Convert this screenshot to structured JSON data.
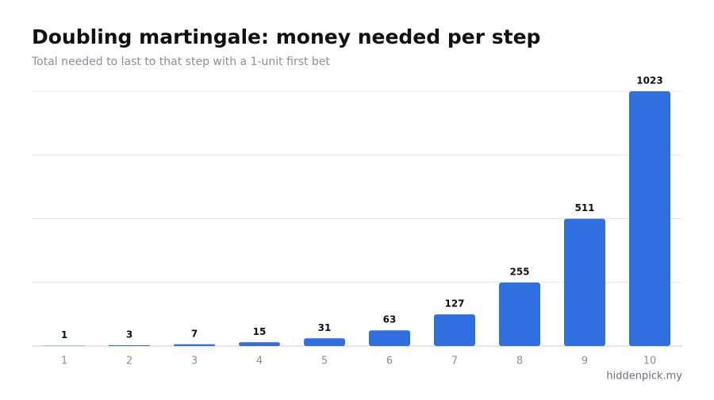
{
  "chart_data": {
    "type": "bar",
    "title": "Doubling martingale: money needed per step",
    "subtitle": "Total needed to last to that step with a 1-unit first bet",
    "categories": [
      "1",
      "2",
      "3",
      "4",
      "5",
      "6",
      "7",
      "8",
      "9",
      "10"
    ],
    "values": [
      1,
      3,
      7,
      15,
      31,
      63,
      127,
      255,
      511,
      1023
    ],
    "color": "#2f6fe0",
    "ylim": [
      0,
      1023
    ],
    "yticks": [
      0,
      255.75,
      511.5,
      767.25,
      1023
    ],
    "grid": true,
    "source": "hiddenpick.my"
  }
}
